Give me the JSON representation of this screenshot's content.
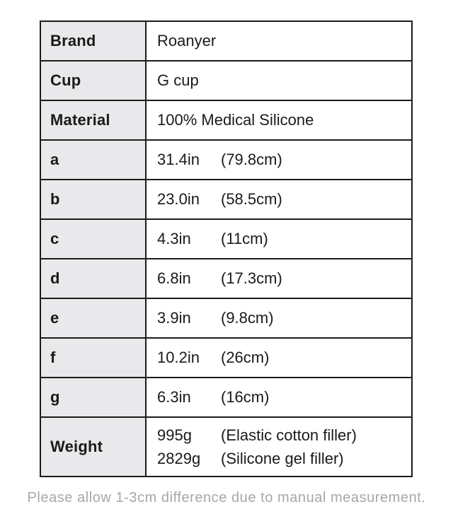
{
  "table": {
    "info_rows": [
      {
        "label": "Brand",
        "value": "Roanyer"
      },
      {
        "label": "Cup",
        "value": "G cup"
      },
      {
        "label": "Material",
        "value": "100% Medical Silicone"
      }
    ],
    "measure_rows": [
      {
        "label": "a",
        "inches": "31.4in",
        "cm": "(79.8cm)"
      },
      {
        "label": "b",
        "inches": "23.0in",
        "cm": "(58.5cm)"
      },
      {
        "label": "c",
        "inches": "4.3in",
        "cm": "(11cm)"
      },
      {
        "label": "d",
        "inches": "6.8in",
        "cm": "(17.3cm)"
      },
      {
        "label": "e",
        "inches": "3.9in",
        "cm": "(9.8cm)"
      },
      {
        "label": "f",
        "inches": "10.2in",
        "cm": "(26cm)"
      },
      {
        "label": "g",
        "inches": "6.3in",
        "cm": "(16cm)"
      }
    ],
    "weight_row": {
      "label": "Weight",
      "lines": [
        {
          "value": "995g",
          "note": "(Elastic cotton filler)"
        },
        {
          "value": "2829g",
          "note": "(Silicone gel filler)"
        }
      ]
    }
  },
  "footer": {
    "note": "Please allow 1-3cm difference due to manual measurement."
  },
  "colors": {
    "border": "#1b1b1b",
    "label_background": "#e9e9ec",
    "text": "#1a1a1a",
    "footer_text": "#a7a7ab"
  }
}
